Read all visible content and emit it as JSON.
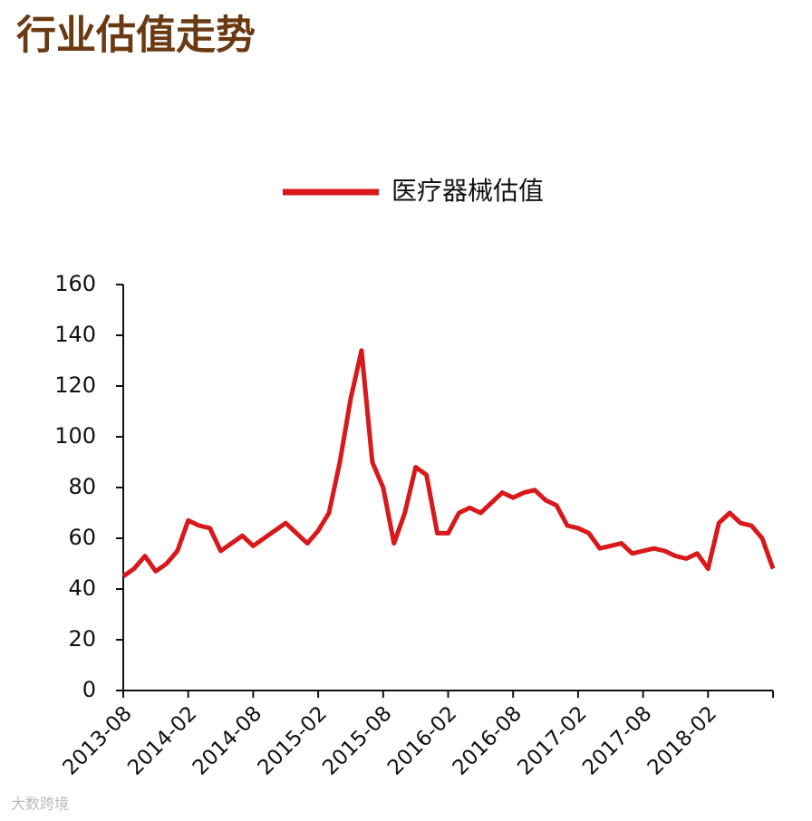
{
  "chart_data": {
    "type": "line",
    "title": "行业估值走势",
    "categories": [
      "2013-08",
      null,
      null,
      null,
      null,
      null,
      "2014-02",
      null,
      null,
      null,
      null,
      null,
      "2014-08",
      null,
      null,
      null,
      null,
      null,
      "2015-02",
      null,
      null,
      null,
      null,
      null,
      "2015-08",
      null,
      null,
      null,
      null,
      null,
      "2016-02",
      null,
      null,
      null,
      null,
      null,
      "2016-08",
      null,
      null,
      null,
      null,
      null,
      "2017-02",
      null,
      null,
      null,
      null,
      null,
      "2017-08",
      null,
      null,
      null,
      null,
      null,
      "2018-02",
      null,
      null,
      null,
      null,
      null,
      null
    ],
    "series": [
      {
        "name": "医疗器械估值",
        "color": "#d7191c",
        "values": [
          45,
          48,
          53,
          47,
          50,
          55,
          67,
          65,
          64,
          55,
          58,
          61,
          57,
          60,
          63,
          66,
          62,
          58,
          63,
          70,
          90,
          115,
          134,
          90,
          80,
          58,
          70,
          88,
          85,
          62,
          62,
          70,
          72,
          70,
          74,
          78,
          76,
          78,
          79,
          75,
          73,
          65,
          64,
          62,
          56,
          57,
          58,
          54,
          55,
          56,
          55,
          53,
          52,
          54,
          48,
          66,
          70,
          66,
          65,
          60,
          48
        ]
      }
    ],
    "ylim": [
      0,
      160
    ],
    "yticks": [
      0,
      20,
      40,
      60,
      80,
      100,
      120,
      140,
      160
    ],
    "legend": "top"
  },
  "watermark": "大数跨境"
}
